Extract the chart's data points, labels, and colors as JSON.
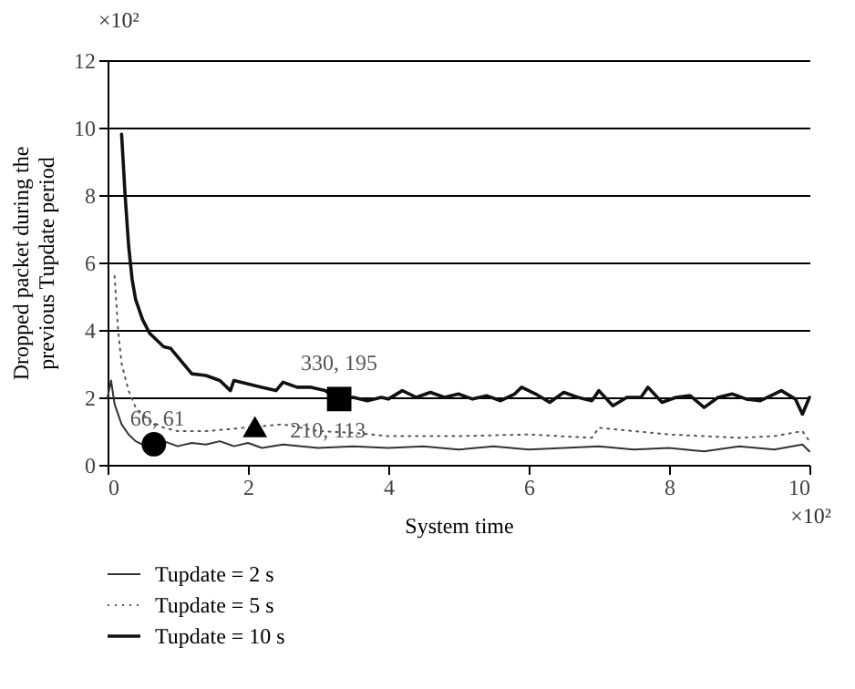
{
  "chart_data": {
    "type": "line",
    "xlabel": "System time",
    "ylabel": "Dropped packet during the previous Tupdate period",
    "xlim": [
      0,
      10
    ],
    "ylim": [
      0,
      12
    ],
    "xticks": [
      0,
      2,
      4,
      6,
      8,
      10
    ],
    "yticks": [
      0,
      2,
      4,
      6,
      8,
      10,
      12
    ],
    "grid": "y",
    "legend": "bottom left",
    "annotations": [
      "×10²",
      "×10²",
      {
        "text": "66, 61",
        "x": 0.66,
        "y": 0.61
      },
      {
        "text": "210, 113",
        "x": 2.1,
        "y": 1.13
      },
      {
        "text": "330, 195",
        "x": 3.3,
        "y": 1.95
      }
    ],
    "series": [
      {
        "name": "Tupdate = 2 s",
        "color": "#333333",
        "line_style": "solid",
        "x": [
          0,
          0.05,
          0.1,
          0.2,
          0.3,
          0.4,
          0.5,
          0.66,
          0.8,
          1.0,
          1.2,
          1.4,
          1.6,
          1.8,
          2.0,
          2.2,
          2.5,
          3.0,
          3.5,
          4.0,
          4.5,
          5,
          5.5,
          6,
          6.5,
          7,
          7.5,
          8,
          8.5,
          9,
          9.5,
          9.9,
          10
        ],
        "values": [
          2.0,
          2.5,
          1.8,
          1.2,
          0.9,
          0.7,
          0.6,
          0.61,
          0.7,
          0.55,
          0.65,
          0.6,
          0.7,
          0.55,
          0.65,
          0.5,
          0.6,
          0.5,
          0.55,
          0.5,
          0.55,
          0.45,
          0.55,
          0.45,
          0.5,
          0.55,
          0.45,
          0.5,
          0.4,
          0.55,
          0.45,
          0.6,
          0.4
        ]
      },
      {
        "name": "Tupdate = 5 s",
        "color": "#555555",
        "line_style": "dotted",
        "x": [
          0.1,
          0.15,
          0.2,
          0.3,
          0.4,
          0.6,
          0.8,
          1.0,
          1.4,
          1.7,
          2.1,
          2.5,
          3.0,
          3.5,
          4.0,
          5.0,
          6.0,
          6.9,
          7.0,
          7.5,
          8.0,
          8.5,
          9.0,
          9.5,
          9.9,
          10
        ],
        "values": [
          5.6,
          4,
          3,
          2.2,
          1.7,
          1.3,
          1.1,
          1.0,
          1.0,
          1.05,
          1.13,
          1.2,
          1.0,
          0.95,
          0.85,
          0.85,
          0.9,
          0.8,
          1.1,
          1.0,
          0.9,
          0.85,
          0.8,
          0.85,
          1.0,
          0.7
        ]
      },
      {
        "name": "Tupdate = 10 s",
        "color": "#111111",
        "line_style": "solid",
        "x": [
          0.2,
          0.25,
          0.3,
          0.35,
          0.4,
          0.5,
          0.6,
          0.8,
          0.9,
          1.0,
          1.2,
          1.4,
          1.6,
          1.75,
          1.8,
          2.0,
          2.2,
          2.4,
          2.5,
          2.7,
          2.9,
          3.1,
          3.3,
          3.5,
          3.7,
          3.9,
          4.0,
          4.2,
          4.4,
          4.6,
          4.8,
          5.0,
          5.2,
          5.4,
          5.6,
          5.8,
          5.9,
          6.1,
          6.3,
          6.5,
          6.7,
          6.9,
          7.0,
          7.2,
          7.4,
          7.6,
          7.7,
          7.9,
          8.1,
          8.3,
          8.5,
          8.7,
          8.9,
          9.1,
          9.3,
          9.5,
          9.6,
          9.8,
          9.9,
          10
        ],
        "values": [
          9.8,
          8,
          6.5,
          5.5,
          4.9,
          4.3,
          3.9,
          3.5,
          3.45,
          3.2,
          2.7,
          2.65,
          2.5,
          2.2,
          2.5,
          2.4,
          2.3,
          2.2,
          2.45,
          2.3,
          2.3,
          2.2,
          1.95,
          2.0,
          1.9,
          2.0,
          1.95,
          2.2,
          2.0,
          2.15,
          2.0,
          2.1,
          1.95,
          2.05,
          1.9,
          2.1,
          2.3,
          2.1,
          1.85,
          2.15,
          2.0,
          1.9,
          2.2,
          1.75,
          2.0,
          2.0,
          2.3,
          1.85,
          2.0,
          2.05,
          1.7,
          2.0,
          2.1,
          1.95,
          1.9,
          2.1,
          2.2,
          1.95,
          1.5,
          2.0
        ]
      },
      {
        "type": "scatter",
        "marker": "circle",
        "color": "#000000",
        "x": [
          0.66
        ],
        "values": [
          0.61
        ]
      },
      {
        "type": "scatter",
        "marker": "triangle",
        "color": "#000000",
        "x": [
          2.1
        ],
        "values": [
          1.13
        ]
      },
      {
        "type": "scatter",
        "marker": "square",
        "color": "#000000",
        "x": [
          3.3
        ],
        "values": [
          1.95
        ]
      }
    ]
  }
}
